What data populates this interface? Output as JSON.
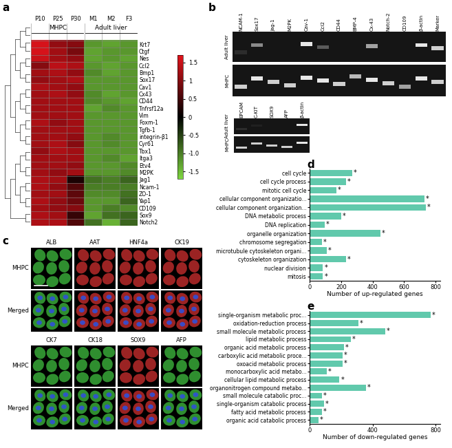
{
  "panel_labels": [
    "a",
    "b",
    "c",
    "d",
    "e"
  ],
  "chart_data": [
    {
      "type": "heatmap",
      "samples": [
        "P10",
        "P25",
        "P30",
        "M1",
        "M2",
        "F3"
      ],
      "groups": [
        {
          "name": "MHPC",
          "samples": [
            "P10",
            "P25",
            "P30"
          ]
        },
        {
          "name": "Adult liver",
          "samples": [
            "M1",
            "M2",
            "F3"
          ]
        }
      ],
      "genes": [
        "Krt7",
        "Ctgf",
        "Nes",
        "Ccl2",
        "Bmp1",
        "Sox17",
        "Cav1",
        "Cx43",
        "CD44",
        "Tnfrsf12a",
        "Vim",
        "Foxm-1",
        "Tgfb-1",
        "integrin-β1",
        "Cyr61",
        "Tbx1",
        "Itga3",
        "Etv4",
        "M2PK",
        "Jag1",
        "Ncam-1",
        "ZO-1",
        "Yap1",
        "CD109",
        "Sox9",
        "Notch2"
      ],
      "values": [
        [
          1.6,
          1.1,
          1.0,
          -1.2,
          -1.3,
          -1.2
        ],
        [
          1.6,
          1.2,
          0.9,
          -1.3,
          -1.2,
          -1.2
        ],
        [
          1.5,
          1.2,
          1.1,
          -1.3,
          -1.2,
          -1.3
        ],
        [
          1.0,
          1.4,
          1.3,
          -1.2,
          -1.3,
          -1.2
        ],
        [
          1.2,
          1.3,
          1.1,
          -1.1,
          -1.3,
          -1.2
        ],
        [
          1.1,
          1.2,
          1.3,
          -1.2,
          -1.2,
          -1.2
        ],
        [
          1.3,
          1.2,
          1.1,
          -1.2,
          -1.2,
          -1.2
        ],
        [
          1.2,
          1.3,
          1.1,
          -1.1,
          -1.3,
          -1.2
        ],
        [
          1.2,
          1.2,
          1.2,
          -1.1,
          -1.2,
          -1.3
        ],
        [
          1.2,
          1.2,
          1.2,
          -1.3,
          -1.1,
          -1.2
        ],
        [
          1.2,
          1.2,
          1.2,
          -1.2,
          -1.2,
          -1.2
        ],
        [
          1.3,
          1.1,
          1.2,
          -1.2,
          -1.2,
          -1.2
        ],
        [
          1.2,
          1.2,
          1.2,
          -1.2,
          -1.2,
          -1.2
        ],
        [
          1.2,
          1.2,
          1.1,
          -1.2,
          -1.1,
          -1.2
        ],
        [
          1.2,
          1.3,
          1.0,
          -1.2,
          -1.1,
          -1.2
        ],
        [
          1.1,
          1.3,
          1.2,
          -1.2,
          -1.2,
          -1.2
        ],
        [
          1.2,
          1.2,
          1.2,
          -1.2,
          -1.1,
          -1.3
        ],
        [
          1.2,
          1.2,
          1.1,
          -1.2,
          -1.2,
          -1.1
        ],
        [
          1.2,
          1.1,
          1.2,
          -1.2,
          -1.2,
          -1.1
        ],
        [
          1.3,
          1.2,
          0.2,
          -0.9,
          -1.0,
          -0.8
        ],
        [
          1.3,
          1.1,
          0.6,
          -1.0,
          -1.0,
          -1.0
        ],
        [
          1.2,
          1.2,
          0.7,
          -1.1,
          -1.1,
          -0.9
        ],
        [
          1.3,
          1.1,
          0.8,
          -1.2,
          -1.2,
          -0.8
        ],
        [
          1.2,
          1.1,
          1.0,
          -1.2,
          -1.0,
          -1.1
        ],
        [
          1.3,
          1.2,
          0.4,
          -1.3,
          -0.9,
          -0.8
        ],
        [
          1.3,
          1.3,
          0.6,
          -0.9,
          -1.4,
          -0.8
        ]
      ],
      "color_range": [
        -1.7,
        1.7
      ],
      "color_ticks": [
        1.5,
        1,
        0.5,
        0,
        -0.5,
        {
          "value": -1,
          "label": "-1.0"
        },
        -1.5
      ]
    },
    {
      "type": "bar",
      "orientation": "horizontal",
      "color": "#61c9ac",
      "categories": [
        "cell cycle",
        "cell cycle process",
        "mitotic cell cycle",
        "cellular component organizatio...",
        "cellular component organization...",
        "DNA metabolic process",
        "DNA replication",
        "organelle organization",
        "chromosome segregation",
        "microtubule cytoskeleton organi...",
        "cytoskeleton organization",
        "nuclear division",
        "mitosis"
      ],
      "values": [
        270,
        230,
        170,
        730,
        740,
        200,
        95,
        450,
        80,
        110,
        230,
        85,
        85
      ],
      "annotations": [
        "*",
        "*",
        "*",
        "*",
        "*",
        "*",
        "*",
        "*",
        "*",
        "*",
        "*",
        "*",
        "*"
      ],
      "x_label": "Number of up-regulated genes",
      "xlim": [
        0,
        830
      ],
      "xticks": [
        0,
        200,
        400,
        600,
        800
      ]
    },
    {
      "type": "bar",
      "orientation": "horizontal",
      "color": "#61c9ac",
      "categories": [
        "single-organism metabolic proc...",
        "oxidation-reduction process",
        "small molecule metabolic process",
        "lipid metabolic process",
        "organic acid metabolic process",
        "carboxylic acid metabolic proce...",
        "oxoacid metabolic process",
        "monocarboxylic acid metabo...",
        "cellular lipid metabolic process",
        "organonitrogen compound metabo...",
        "small molecule catabolic proc...",
        "single-organism catabolic process",
        "fatty acid metabolic process",
        "organic acid catabolic process"
      ],
      "values": [
        770,
        310,
        480,
        260,
        220,
        210,
        210,
        110,
        190,
        360,
        80,
        90,
        80,
        55
      ],
      "annotations": [
        "*",
        "*",
        "*",
        "*",
        "*",
        "*",
        "*",
        "*",
        "*",
        "*",
        "*",
        "*",
        "*",
        "*"
      ],
      "x_label": "Number of down-regulated genes",
      "xlim": [
        0,
        830
      ],
      "xticks": [
        0,
        400,
        800
      ]
    }
  ],
  "gel_electrophoresis": [
    {
      "lanes": [
        "NCAM-1",
        "Sox17",
        "Jag-1",
        "M2PK",
        "Cav-1",
        "Ccl2",
        "CD44",
        "BMP-4",
        "Cx-43",
        "Notch-2",
        "CD109",
        "β-actin",
        "Marker"
      ],
      "rows": [
        {
          "name": "Adult liver",
          "intensity": [
            0.1,
            0.5,
            0,
            0,
            0.9,
            0.3,
            0,
            0,
            0.6,
            0,
            0,
            0.9,
            0.8
          ]
        },
        {
          "name": "MHPC",
          "intensity": [
            0.8,
            0.9,
            0.8,
            0.8,
            0.9,
            0.9,
            0.8,
            0.7,
            0.9,
            0.8,
            0.6,
            0.9,
            0.8
          ]
        }
      ]
    },
    {
      "lanes": [
        "EPCAM",
        "C-KIT",
        "SOX9",
        "AFP",
        "β-actin"
      ],
      "rows": [
        {
          "name": "Adult liver",
          "intensity": [
            0.1,
            0.05,
            0,
            0,
            0.9
          ]
        },
        {
          "name": "MHPC",
          "intensity": [
            0.8,
            0.8,
            0.8,
            0.8,
            0.9
          ]
        }
      ]
    }
  ],
  "immunofluorescence": {
    "row_labels": [
      "MHPC",
      "Merged"
    ],
    "blocks": [
      [
        {
          "name": "ALB",
          "color": "#3fbf3f"
        },
        {
          "name": "AAT",
          "color": "#d03030"
        },
        {
          "name": "HNF4a",
          "color": "#d03030"
        },
        {
          "name": "CK19",
          "color": "#d03030"
        }
      ],
      [
        {
          "name": "CK7",
          "color": "#3fbf3f"
        },
        {
          "name": "CK18",
          "color": "#3fbf3f"
        },
        {
          "name": "SOX9",
          "color": "#d03030"
        },
        {
          "name": "AFP",
          "color": "#3fbf3f"
        }
      ]
    ]
  }
}
